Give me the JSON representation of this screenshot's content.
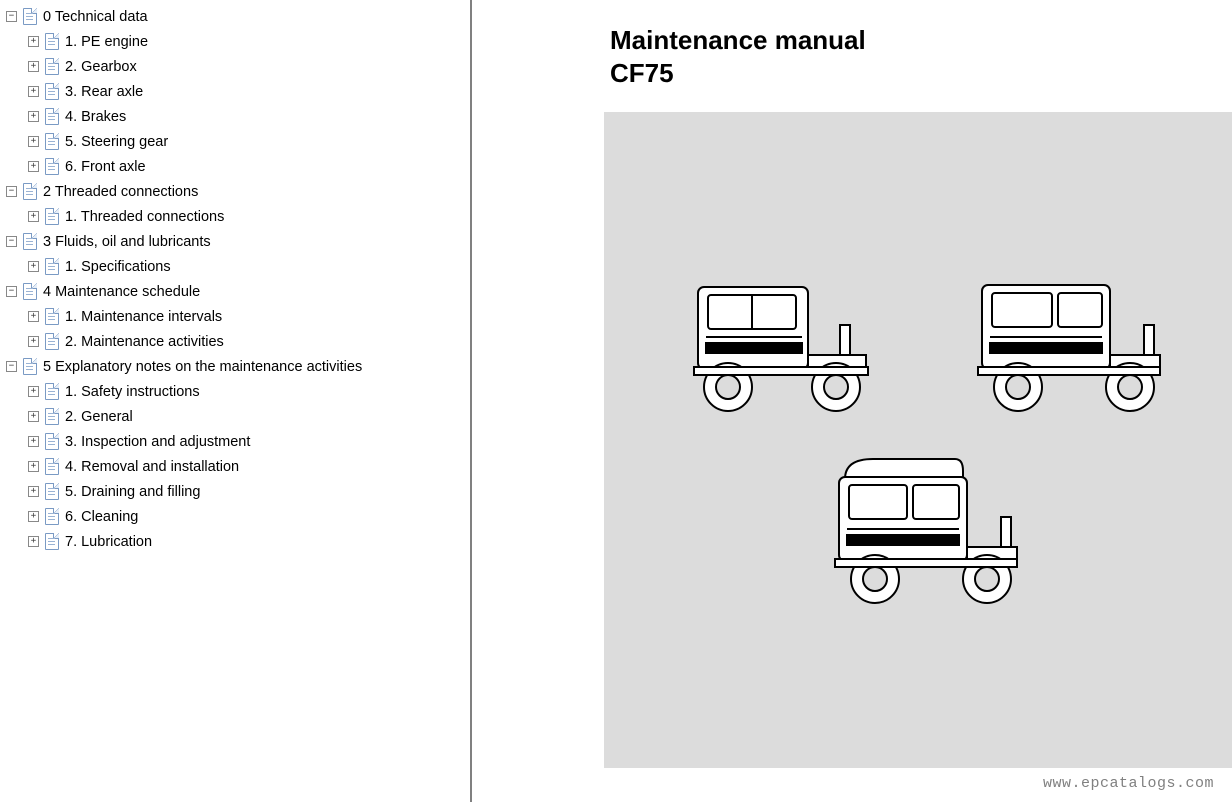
{
  "colors": {
    "bg": "#ffffff",
    "tree_text": "#000000",
    "tree_border": "#888888",
    "panel_divider": "#808080",
    "illustration_bg": "#dcdcdc",
    "watermark_text": "#808080",
    "icon_border": "#7a9ac4"
  },
  "fontsizes": {
    "tree": 14.5,
    "title": 26,
    "watermark": 15
  },
  "tree": [
    {
      "level": 0,
      "exp": "-",
      "label": "0 Technical data"
    },
    {
      "level": 1,
      "exp": "+",
      "label": "1. PE engine"
    },
    {
      "level": 1,
      "exp": "+",
      "label": "2. Gearbox"
    },
    {
      "level": 1,
      "exp": "+",
      "label": "3. Rear axle"
    },
    {
      "level": 1,
      "exp": "+",
      "label": "4. Brakes"
    },
    {
      "level": 1,
      "exp": "+",
      "label": "5. Steering gear"
    },
    {
      "level": 1,
      "exp": "+",
      "label": "6. Front axle"
    },
    {
      "level": 0,
      "exp": "-",
      "label": "2 Threaded connections"
    },
    {
      "level": 1,
      "exp": "+",
      "label": "1. Threaded connections"
    },
    {
      "level": 0,
      "exp": "-",
      "label": "3 Fluids, oil and lubricants"
    },
    {
      "level": 1,
      "exp": "+",
      "label": "1. Specifications"
    },
    {
      "level": 0,
      "exp": "-",
      "label": "4 Maintenance schedule"
    },
    {
      "level": 1,
      "exp": "+",
      "label": "1. Maintenance intervals"
    },
    {
      "level": 1,
      "exp": "+",
      "label": "2. Maintenance activities"
    },
    {
      "level": 0,
      "exp": "-",
      "label": "5 Explanatory notes on the maintenance activities"
    },
    {
      "level": 1,
      "exp": "+",
      "label": "1. Safety instructions"
    },
    {
      "level": 1,
      "exp": "+",
      "label": "2. General"
    },
    {
      "level": 1,
      "exp": "+",
      "label": "3. Inspection and adjustment"
    },
    {
      "level": 1,
      "exp": "+",
      "label": "4. Removal and installation"
    },
    {
      "level": 1,
      "exp": "+",
      "label": "5. Draining and filling"
    },
    {
      "level": 1,
      "exp": "+",
      "label": "6. Cleaning"
    },
    {
      "level": 1,
      "exp": "+",
      "label": "7. Lubrication"
    }
  ],
  "document": {
    "title_line1": "Maintenance manual",
    "title_line2": "CF75",
    "truck_variants": [
      "day-cab",
      "sleeper-cab",
      "high-roof-cab"
    ]
  },
  "watermark": "www.epcatalogs.com"
}
